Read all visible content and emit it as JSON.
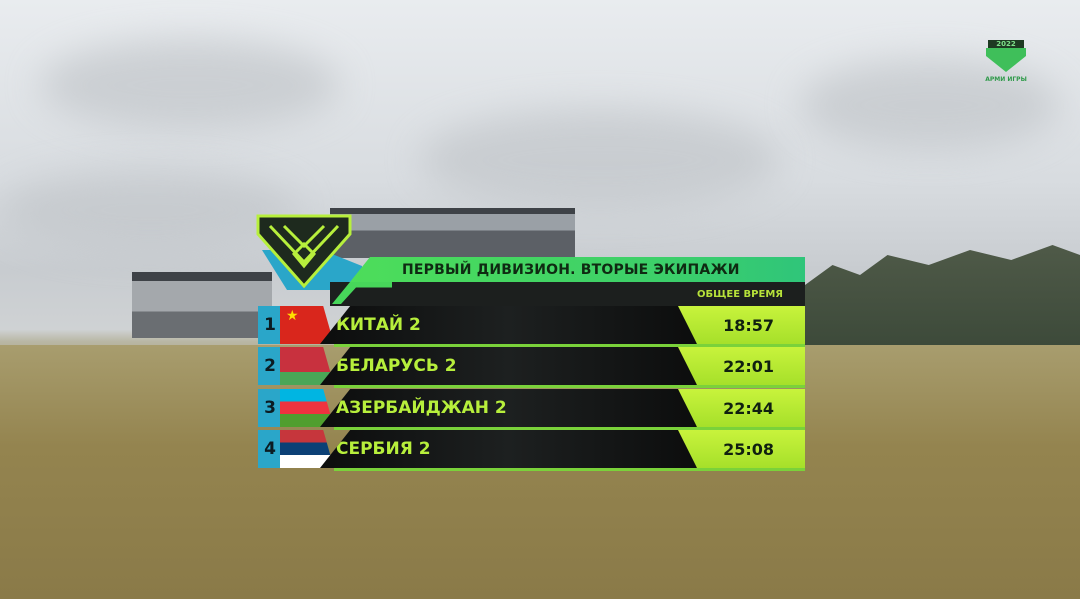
{
  "scoreboard": {
    "title": "ПЕРВЫЙ ДИВИЗИОН. ВТОРЫЕ ЭКИПАЖИ",
    "column_header": "ОБЩЕЕ ВРЕМЯ",
    "rows": [
      {
        "rank": "1",
        "team": "КИТАЙ 2",
        "time": "18:57",
        "flag": "china"
      },
      {
        "rank": "2",
        "team": "БЕЛАРУСЬ 2",
        "time": "22:01",
        "flag": "belarus"
      },
      {
        "rank": "3",
        "team": "АЗЕРБАЙДЖАН 2",
        "time": "22:44",
        "flag": "azerbaijan"
      },
      {
        "rank": "4",
        "team": "СЕРБИЯ 2",
        "time": "25:08",
        "flag": "serbia"
      }
    ]
  },
  "logo": {
    "text": "АРМИ ИГРЫ",
    "year": "2022"
  },
  "colors": {
    "accent_green": "#b7ef3c",
    "header_green": "#3ccf6a",
    "accent_blue": "#2aa6c9"
  }
}
